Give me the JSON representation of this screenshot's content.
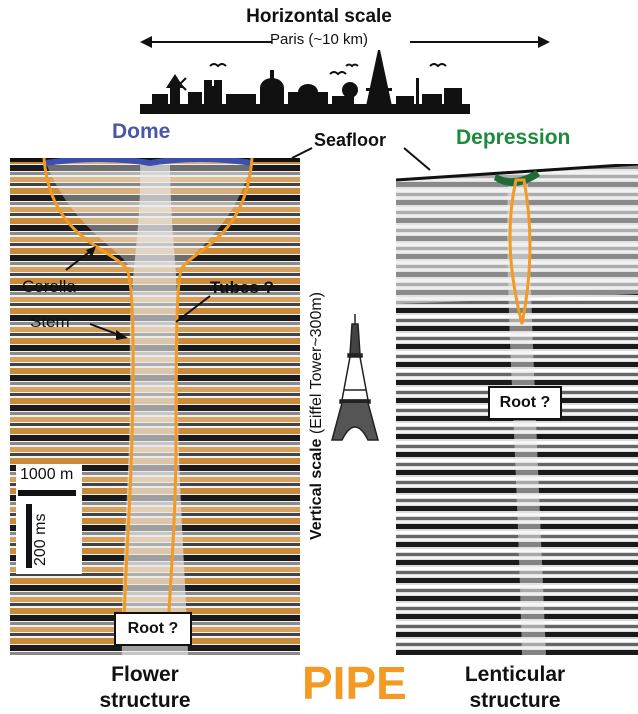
{
  "horizontal_scale": {
    "title": "Horizontal scale",
    "subtitle": "Paris (~10 km)"
  },
  "vertical_scale": {
    "label": "Vertical scale",
    "detail": "(Eiffel Tower~300m)"
  },
  "left_panel": {
    "top_label": "Dome",
    "callouts": {
      "corolla": "Corolla",
      "stem": "Stem",
      "tubes": "Tubes ?"
    },
    "root": "Root ?",
    "scale_h": "1000 m",
    "scale_v": "200 ms",
    "bottom_line1": "Flower",
    "bottom_line2": "structure"
  },
  "right_panel": {
    "top_label": "Depression",
    "root": "Root ?",
    "bottom_line1": "Lenticular",
    "bottom_line2": "structure"
  },
  "seafloor": "Seafloor",
  "center_title": "PIPE",
  "colors": {
    "dome": "#4a57a8",
    "depression": "#1e8a3c",
    "pipe_outline": "#f39a24",
    "orange_reflector": "#c98a3a",
    "pipe_title": "#f39a24"
  }
}
